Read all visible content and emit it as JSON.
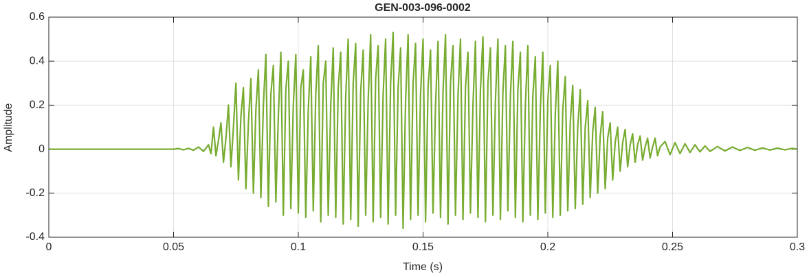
{
  "chart_data": {
    "type": "line",
    "title": "GEN-003-096-0002",
    "xlabel": "Time (s)",
    "ylabel": "Amplitude",
    "color": "#77ac30",
    "grid": true,
    "xlim": [
      0,
      0.3
    ],
    "xticks": [
      0,
      0.05,
      0.1,
      0.15,
      0.2,
      0.25,
      0.3
    ],
    "ylim": [
      -0.4,
      0.6
    ],
    "yticks": [
      -0.4,
      -0.2,
      0,
      0.2,
      0.4,
      0.6
    ],
    "x": [
      0,
      0.05,
      0.052,
      0.054,
      0.056,
      0.058,
      0.06,
      0.062,
      0.064,
      0.065,
      0.066,
      0.067,
      0.068,
      0.069,
      0.07,
      0.071,
      0.072,
      0.073,
      0.074,
      0.075,
      0.076,
      0.077,
      0.078,
      0.079,
      0.08,
      0.081,
      0.082,
      0.083,
      0.084,
      0.085,
      0.086,
      0.087,
      0.088,
      0.089,
      0.09,
      0.091,
      0.092,
      0.093,
      0.094,
      0.095,
      0.096,
      0.097,
      0.098,
      0.099,
      0.1,
      0.101,
      0.102,
      0.103,
      0.104,
      0.105,
      0.106,
      0.107,
      0.108,
      0.109,
      0.11,
      0.111,
      0.112,
      0.113,
      0.114,
      0.115,
      0.116,
      0.117,
      0.118,
      0.119,
      0.12,
      0.121,
      0.122,
      0.123,
      0.124,
      0.125,
      0.126,
      0.127,
      0.128,
      0.129,
      0.13,
      0.131,
      0.132,
      0.133,
      0.134,
      0.135,
      0.136,
      0.137,
      0.138,
      0.139,
      0.14,
      0.141,
      0.142,
      0.143,
      0.144,
      0.145,
      0.146,
      0.147,
      0.148,
      0.149,
      0.15,
      0.151,
      0.152,
      0.153,
      0.154,
      0.155,
      0.156,
      0.157,
      0.158,
      0.159,
      0.16,
      0.161,
      0.162,
      0.163,
      0.164,
      0.165,
      0.166,
      0.167,
      0.168,
      0.169,
      0.17,
      0.171,
      0.172,
      0.173,
      0.174,
      0.175,
      0.176,
      0.177,
      0.178,
      0.179,
      0.18,
      0.181,
      0.182,
      0.183,
      0.184,
      0.185,
      0.186,
      0.187,
      0.188,
      0.189,
      0.19,
      0.191,
      0.192,
      0.193,
      0.194,
      0.195,
      0.196,
      0.197,
      0.198,
      0.199,
      0.2,
      0.201,
      0.202,
      0.203,
      0.204,
      0.205,
      0.206,
      0.207,
      0.208,
      0.209,
      0.21,
      0.211,
      0.212,
      0.213,
      0.214,
      0.215,
      0.216,
      0.217,
      0.218,
      0.219,
      0.22,
      0.221,
      0.222,
      0.223,
      0.224,
      0.225,
      0.226,
      0.227,
      0.228,
      0.229,
      0.23,
      0.231,
      0.232,
      0.233,
      0.234,
      0.235,
      0.236,
      0.237,
      0.238,
      0.239,
      0.24,
      0.241,
      0.242,
      0.243,
      0.244,
      0.245,
      0.247,
      0.249,
      0.251,
      0.253,
      0.255,
      0.257,
      0.259,
      0.261,
      0.263,
      0.265,
      0.268,
      0.271,
      0.274,
      0.277,
      0.28,
      0.283,
      0.286,
      0.289,
      0.292,
      0.295,
      0.298,
      0.3
    ],
    "values": [
      0,
      0,
      0.003,
      -0.003,
      0.004,
      -0.005,
      0.01,
      -0.01,
      0.02,
      -0.02,
      0.1,
      -0.03,
      0.04,
      0.12,
      -0.06,
      0.05,
      0.2,
      -0.08,
      0.1,
      0.3,
      -0.14,
      0.15,
      0.28,
      -0.18,
      0.12,
      0.32,
      -0.2,
      0.18,
      0.36,
      -0.22,
      0.2,
      0.43,
      -0.26,
      0.25,
      0.38,
      -0.24,
      0.15,
      0.44,
      -0.3,
      0.27,
      0.4,
      -0.27,
      0.2,
      0.43,
      -0.29,
      0.28,
      0.36,
      -0.31,
      0.18,
      0.42,
      -0.28,
      0.25,
      0.47,
      -0.33,
      0.3,
      0.4,
      -0.3,
      0.2,
      0.46,
      -0.31,
      0.28,
      0.44,
      -0.34,
      0.24,
      0.5,
      -0.32,
      0.3,
      0.48,
      -0.35,
      0.26,
      0.45,
      -0.3,
      0.22,
      0.52,
      -0.33,
      0.32,
      0.47,
      -0.31,
      0.25,
      0.5,
      -0.34,
      0.3,
      0.53,
      -0.3,
      0.28,
      0.46,
      -0.36,
      0.22,
      0.52,
      -0.32,
      0.3,
      0.48,
      -0.3,
      0.25,
      0.5,
      -0.33,
      0.28,
      0.45,
      -0.29,
      0.2,
      0.49,
      -0.31,
      0.26,
      0.52,
      -0.34,
      0.3,
      0.47,
      -0.3,
      0.24,
      0.5,
      -0.32,
      0.28,
      0.44,
      -0.29,
      0.2,
      0.49,
      -0.31,
      0.27,
      0.51,
      -0.33,
      0.3,
      0.46,
      -0.3,
      0.22,
      0.5,
      -0.32,
      0.26,
      0.47,
      -0.28,
      0.24,
      0.49,
      -0.31,
      0.27,
      0.44,
      -0.33,
      0.2,
      0.47,
      -0.3,
      0.24,
      0.42,
      -0.32,
      0.18,
      0.44,
      -0.29,
      0.22,
      0.38,
      -0.31,
      0.16,
      0.4,
      -0.3,
      0.18,
      0.33,
      -0.28,
      0.12,
      0.29,
      -0.27,
      0.1,
      0.27,
      -0.25,
      0.1,
      0.22,
      -0.22,
      0.08,
      0.19,
      -0.2,
      0.06,
      0.17,
      -0.18,
      0.05,
      0.12,
      -0.14,
      0.03,
      0.1,
      -0.1,
      0.03,
      0.09,
      -0.08,
      0.02,
      0.07,
      -0.06,
      0.02,
      0.06,
      -0.05,
      0.01,
      0.05,
      -0.04,
      0.01,
      0.05,
      -0.03,
      0.01,
      0.035,
      -0.025,
      0.03,
      -0.02,
      0.025,
      -0.015,
      0.02,
      -0.012,
      0.015,
      -0.01,
      0.012,
      -0.008,
      0.01,
      -0.006,
      0.008,
      -0.005,
      0.006,
      -0.004,
      0.005,
      -0.003,
      0.004,
      0
    ]
  }
}
